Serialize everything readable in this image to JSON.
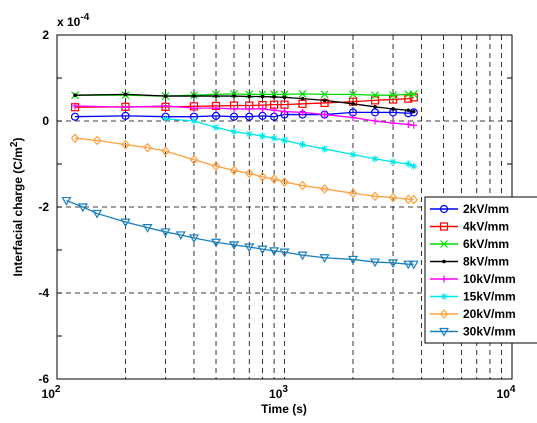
{
  "chart_data": {
    "type": "line",
    "title": "",
    "xlabel": "Time (s)",
    "ylabel_main": "Interfacial charge (C/m",
    "ylabel_sup": "2",
    "ylabel_tail": ")",
    "exponent_prefix": "x 10",
    "exponent_power": "-4",
    "xscale": "log",
    "xlim": [
      100,
      10000
    ],
    "ylim": [
      -6,
      2
    ],
    "xticks": [
      {
        "value": 100,
        "base": "10",
        "power": "2"
      },
      {
        "value": 1000,
        "base": "10",
        "power": "3"
      },
      {
        "value": 10000,
        "base": "10",
        "power": "4"
      }
    ],
    "yticks": [
      {
        "value": 2,
        "label": "2"
      },
      {
        "value": 0,
        "label": "0"
      },
      {
        "value": -2,
        "label": "-2"
      },
      {
        "value": -4,
        "label": "-4"
      },
      {
        "value": -6,
        "label": "-6"
      }
    ],
    "grid": true,
    "legend_position": "right",
    "series": [
      {
        "name": "2kV/mm",
        "color": "#0000ff",
        "marker": "circle",
        "x": [
          120,
          200,
          300,
          400,
          500,
          600,
          700,
          800,
          900,
          1000,
          1200,
          1500,
          2000,
          2500,
          3000,
          3500,
          3700
        ],
        "y": [
          0.1,
          0.12,
          0.1,
          0.1,
          0.12,
          0.1,
          0.1,
          0.12,
          0.1,
          0.15,
          0.15,
          0.15,
          0.2,
          0.2,
          0.2,
          0.18,
          0.2
        ]
      },
      {
        "name": "4kV/mm",
        "color": "#ff0000",
        "marker": "square",
        "x": [
          120,
          200,
          300,
          400,
          500,
          600,
          700,
          800,
          900,
          1000,
          1200,
          1500,
          2000,
          2500,
          3000,
          3500,
          3700
        ],
        "y": [
          0.32,
          0.33,
          0.33,
          0.34,
          0.35,
          0.36,
          0.36,
          0.37,
          0.38,
          0.38,
          0.4,
          0.42,
          0.45,
          0.48,
          0.5,
          0.52,
          0.55
        ]
      },
      {
        "name": "6kV/mm",
        "color": "#00dd00",
        "marker": "x",
        "x": [
          120,
          200,
          300,
          400,
          500,
          600,
          700,
          800,
          900,
          1000,
          1200,
          1500,
          2000,
          2500,
          3000,
          3500,
          3700
        ],
        "y": [
          0.6,
          0.6,
          0.58,
          0.6,
          0.62,
          0.63,
          0.62,
          0.62,
          0.62,
          0.62,
          0.63,
          0.62,
          0.62,
          0.6,
          0.6,
          0.62,
          0.62
        ]
      },
      {
        "name": "8kV/mm",
        "color": "#000000",
        "marker": "dot",
        "x": [
          120,
          200,
          300,
          400,
          500,
          600,
          700,
          800,
          900,
          1000,
          1200,
          1500,
          2000,
          2500,
          3000,
          3500,
          3700
        ],
        "y": [
          0.6,
          0.62,
          0.58,
          0.58,
          0.58,
          0.58,
          0.57,
          0.57,
          0.56,
          0.55,
          0.52,
          0.48,
          0.4,
          0.33,
          0.28,
          0.25,
          0.22
        ]
      },
      {
        "name": "10kV/mm",
        "color": "#ff00ff",
        "marker": "plus",
        "x": [
          120,
          200,
          300,
          400,
          500,
          600,
          700,
          800,
          900,
          1000,
          1200,
          1500,
          2000,
          2500,
          3000,
          3500,
          3700
        ],
        "y": [
          0.35,
          0.32,
          0.35,
          0.3,
          0.3,
          0.28,
          0.28,
          0.28,
          0.25,
          0.22,
          0.2,
          0.15,
          0.08,
          0.0,
          -0.05,
          -0.08,
          -0.1
        ]
      },
      {
        "name": "15kV/mm",
        "color": "#00e5e5",
        "marker": "star",
        "x": [
          300,
          400,
          500,
          600,
          700,
          800,
          900,
          1000,
          1200,
          1500,
          2000,
          2500,
          3000,
          3500,
          3700
        ],
        "y": [
          0.05,
          0.0,
          -0.15,
          -0.25,
          -0.3,
          -0.35,
          -0.4,
          -0.45,
          -0.55,
          -0.65,
          -0.78,
          -0.88,
          -0.95,
          -1.0,
          -1.05
        ]
      },
      {
        "name": "20kV/mm",
        "color": "#ffa040",
        "marker": "diamond",
        "x": [
          120,
          150,
          200,
          250,
          300,
          400,
          500,
          600,
          700,
          800,
          900,
          1000,
          1200,
          1500,
          2000,
          2500,
          3000,
          3500,
          3700
        ],
        "y": [
          -0.4,
          -0.45,
          -0.55,
          -0.62,
          -0.7,
          -0.9,
          -1.05,
          -1.15,
          -1.22,
          -1.3,
          -1.35,
          -1.42,
          -1.5,
          -1.58,
          -1.68,
          -1.75,
          -1.78,
          -1.82,
          -1.83
        ]
      },
      {
        "name": "30kV/mm",
        "color": "#1a7fbf",
        "marker": "triangle-down",
        "x": [
          110,
          130,
          150,
          200,
          250,
          300,
          350,
          400,
          500,
          600,
          700,
          800,
          900,
          1000,
          1200,
          1500,
          2000,
          2500,
          3000,
          3500,
          3700
        ],
        "y": [
          -1.85,
          -2.0,
          -2.15,
          -2.35,
          -2.48,
          -2.58,
          -2.65,
          -2.72,
          -2.82,
          -2.88,
          -2.93,
          -2.98,
          -3.02,
          -3.05,
          -3.12,
          -3.18,
          -3.22,
          -3.28,
          -3.3,
          -3.33,
          -3.33
        ]
      }
    ]
  }
}
